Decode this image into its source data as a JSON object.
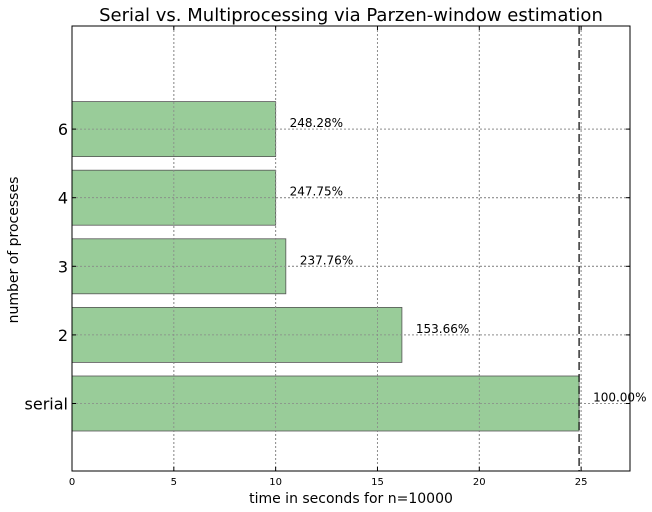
{
  "chart_data": {
    "type": "bar",
    "orientation": "horizontal",
    "title": "Serial vs. Multiprocessing via Parzen-window estimation",
    "xlabel": "time in seconds for n=10000",
    "ylabel": "number of processes",
    "categories": [
      "serial",
      "2",
      "3",
      "4",
      "6"
    ],
    "values": [
      24.9,
      16.2,
      10.5,
      10.0,
      10.0
    ],
    "labels": [
      "100.00%",
      "153.66%",
      "237.76%",
      "247.75%",
      "248.28%"
    ],
    "xlim": [
      0,
      27.4
    ],
    "xticks": [
      "0",
      "5",
      "10",
      "15",
      "20",
      "25"
    ],
    "reference_line": 24.9,
    "grid": true,
    "bar_color": "#99cc99"
  }
}
